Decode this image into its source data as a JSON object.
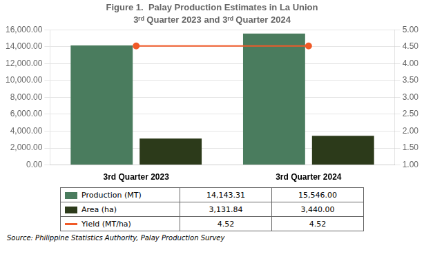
{
  "chart_data": {
    "type": "bar",
    "title": "Figure 1.  Palay Production Estimates in La Union",
    "subtitle": "3ʳᵈ Quarter 2023 and 3ʳᵈ Quarter 2024",
    "categories": [
      "3rd Quarter 2023",
      "3rd Quarter 2024"
    ],
    "series": [
      {
        "name": "Production (MT)",
        "type": "bar",
        "color": "#4a7c5e",
        "values": [
          14143.31,
          15546.0
        ],
        "value_labels": [
          "14,143.31",
          "15,546.00"
        ]
      },
      {
        "name": "Area  (ha)",
        "type": "bar",
        "color": "#2c3a1a",
        "values": [
          3131.84,
          3440.0
        ],
        "value_labels": [
          "3,131.84",
          "3,440.00"
        ]
      },
      {
        "name": "Yield (MT/ha)",
        "type": "line",
        "axis": "y2",
        "color": "#f05a28",
        "values": [
          4.52,
          4.52
        ],
        "value_labels": [
          "4.52",
          "4.52"
        ]
      }
    ],
    "ylim": [
      0,
      16000
    ],
    "yticks": [
      {
        "value": 0,
        "label": "0.00"
      },
      {
        "value": 2000,
        "label": "2,000.00"
      },
      {
        "value": 4000,
        "label": "4,000.00"
      },
      {
        "value": 6000,
        "label": "6,000.00"
      },
      {
        "value": 8000,
        "label": "8,000.00"
      },
      {
        "value": 10000,
        "label": "10,000.00"
      },
      {
        "value": 12000,
        "label": "12,000.00"
      },
      {
        "value": 14000,
        "label": "14,000.00"
      },
      {
        "value": 16000,
        "label": "16,000.00"
      }
    ],
    "y2lim": [
      1.0,
      5.0
    ],
    "y2ticks": [
      {
        "value": 1.0,
        "label": "1.00"
      },
      {
        "value": 1.5,
        "label": "1.50"
      },
      {
        "value": 2.0,
        "label": "2.00"
      },
      {
        "value": 2.5,
        "label": "2.50"
      },
      {
        "value": 3.0,
        "label": "3.00"
      },
      {
        "value": 3.5,
        "label": "3.50"
      },
      {
        "value": 4.0,
        "label": "4.00"
      },
      {
        "value": 4.5,
        "label": "4.50"
      },
      {
        "value": 5.0,
        "label": "5.00"
      }
    ],
    "grid": true,
    "legend": "bottom",
    "annotations": [
      "Source: Philippine Statistics Authority, Palay Production Survey"
    ]
  }
}
